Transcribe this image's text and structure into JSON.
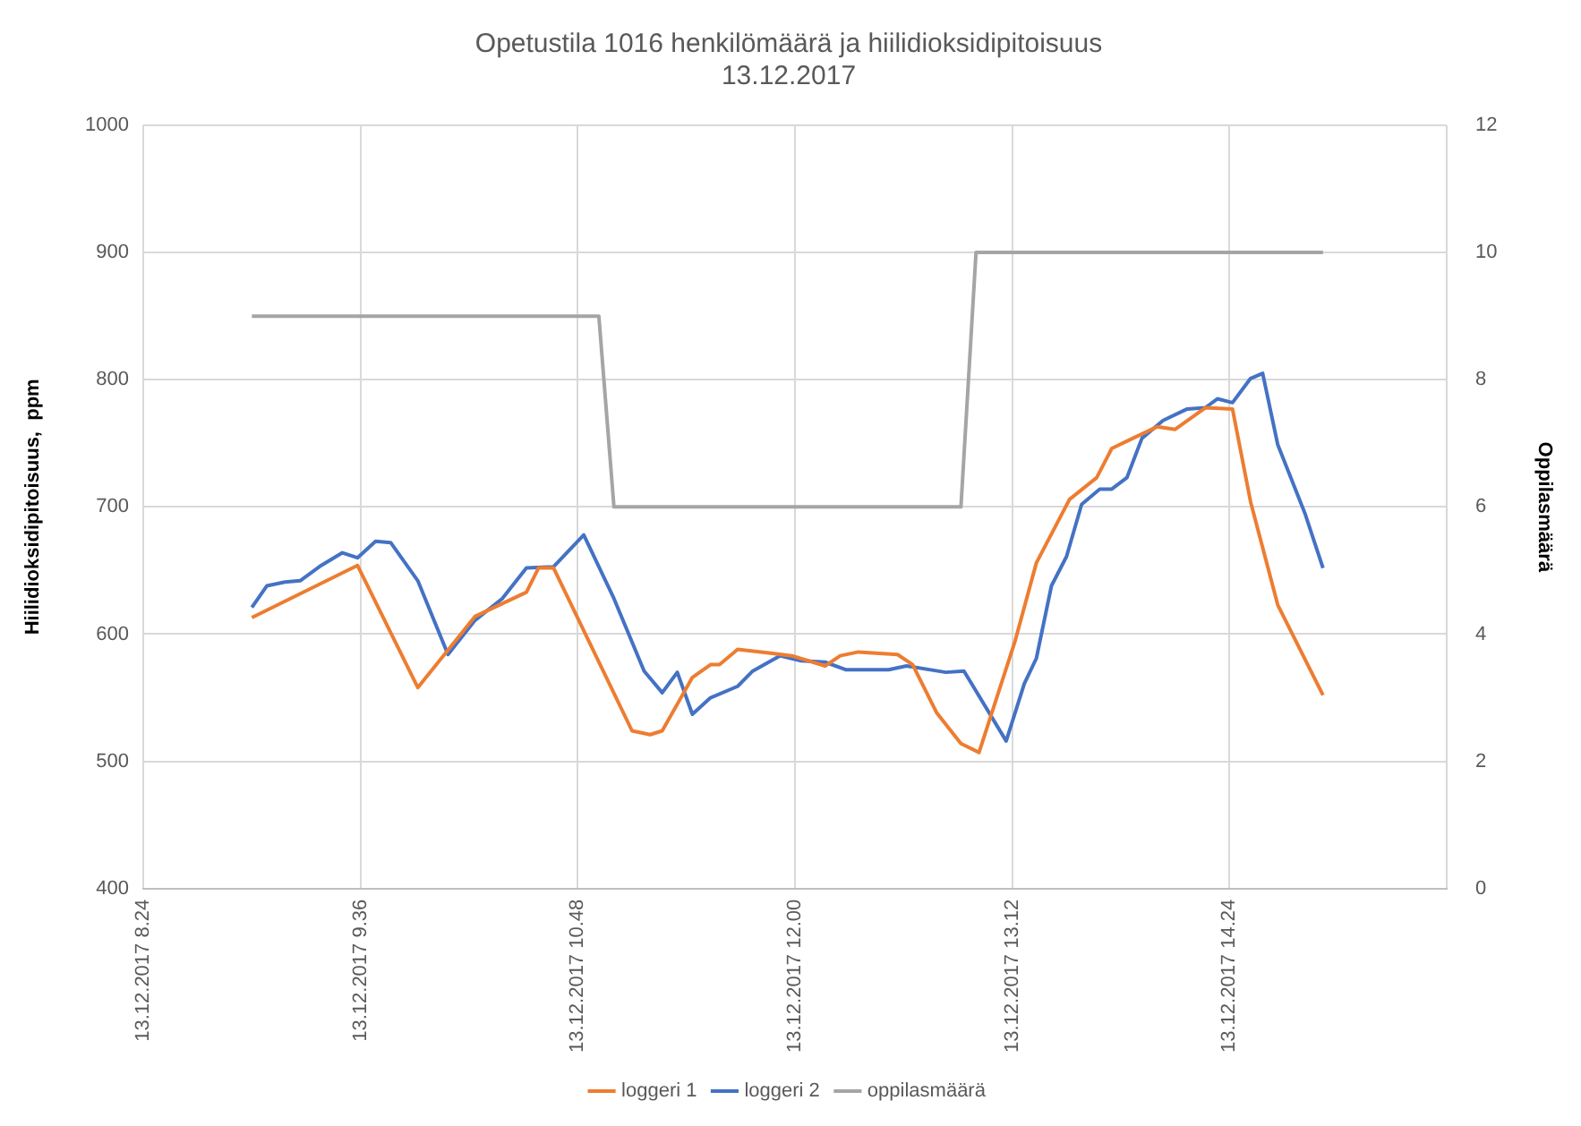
{
  "chart_data": {
    "type": "line",
    "title": "Opetustila 1016 henkilömäärä ja hiilidioksidipitoisuus",
    "subtitle": "13.12.2017",
    "ylabel": "Hiilidioksidipitoisuus,  ppm",
    "y2label": "Oppilasmäärä",
    "xlim": [
      "2017-12-13T08:24",
      "2017-12-13T15:36"
    ],
    "xticks": [
      {
        "value": "2017-12-13T08:24",
        "label": "13.12.2017 8.24"
      },
      {
        "value": "2017-12-13T09:36",
        "label": "13.12.2017 9.36"
      },
      {
        "value": "2017-12-13T10:48",
        "label": "13.12.2017 10.48"
      },
      {
        "value": "2017-12-13T12:00",
        "label": "13.12.2017 12.00"
      },
      {
        "value": "2017-12-13T13:12",
        "label": "13.12.2017 13.12"
      },
      {
        "value": "2017-12-13T14:24",
        "label": "13.12.2017 14.24"
      },
      {
        "value": "2017-12-13T15:36",
        "label": null
      }
    ],
    "ylim": [
      400,
      1000
    ],
    "yticks": [
      400,
      500,
      600,
      700,
      800,
      900,
      1000
    ],
    "y2lim": [
      0,
      12
    ],
    "y2ticks": [
      0,
      2,
      4,
      6,
      8,
      10,
      12
    ],
    "grid": true,
    "legend": "bottom",
    "marker": "none",
    "line_style": "solid",
    "series": [
      {
        "name": "loggeri 1",
        "color": "#ed7d31",
        "x": [
          "2017-12-13T09:00",
          "2017-12-13T09:35",
          "2017-12-13T09:55",
          "2017-12-13T10:14",
          "2017-12-13T10:31",
          "2017-12-13T10:35",
          "2017-12-13T10:40",
          "2017-12-13T11:06",
          "2017-12-13T11:12",
          "2017-12-13T11:16",
          "2017-12-13T11:26",
          "2017-12-13T11:32",
          "2017-12-13T11:35",
          "2017-12-13T11:41",
          "2017-12-13T11:52",
          "2017-12-13T11:59",
          "2017-12-13T12:10",
          "2017-12-13T12:15",
          "2017-12-13T12:21",
          "2017-12-13T12:34",
          "2017-12-13T12:39",
          "2017-12-13T12:47",
          "2017-12-13T12:55",
          "2017-12-13T13:01",
          "2017-12-13T13:13",
          "2017-12-13T13:20",
          "2017-12-13T13:31",
          "2017-12-13T13:40",
          "2017-12-13T13:45",
          "2017-12-13T13:52",
          "2017-12-13T14:00",
          "2017-12-13T14:06",
          "2017-12-13T14:16",
          "2017-12-13T14:25",
          "2017-12-13T14:31",
          "2017-12-13T14:40",
          "2017-12-13T14:55"
        ],
        "values": [
          613,
          654,
          558,
          614,
          633,
          652,
          652,
          524,
          521,
          524,
          566,
          576,
          576,
          588,
          585,
          583,
          575,
          583,
          586,
          584,
          576,
          538,
          514,
          507,
          595,
          656,
          706,
          723,
          746,
          754,
          763,
          761,
          778,
          777,
          704,
          623,
          552
        ]
      },
      {
        "name": "loggeri 2",
        "color": "#4472c4",
        "x": [
          "2017-12-13T09:00",
          "2017-12-13T09:05",
          "2017-12-13T09:11",
          "2017-12-13T09:16",
          "2017-12-13T09:23",
          "2017-12-13T09:30",
          "2017-12-13T09:35",
          "2017-12-13T09:41",
          "2017-12-13T09:46",
          "2017-12-13T09:55",
          "2017-12-13T10:05",
          "2017-12-13T10:14",
          "2017-12-13T10:23",
          "2017-12-13T10:31",
          "2017-12-13T10:40",
          "2017-12-13T10:50",
          "2017-12-13T11:00",
          "2017-12-13T11:10",
          "2017-12-13T11:16",
          "2017-12-13T11:21",
          "2017-12-13T11:26",
          "2017-12-13T11:32",
          "2017-12-13T11:41",
          "2017-12-13T11:46",
          "2017-12-13T11:55",
          "2017-12-13T12:02",
          "2017-12-13T12:10",
          "2017-12-13T12:17",
          "2017-12-13T12:31",
          "2017-12-13T12:37",
          "2017-12-13T12:50",
          "2017-12-13T12:56",
          "2017-12-13T13:10",
          "2017-12-13T13:16",
          "2017-12-13T13:20",
          "2017-12-13T13:25",
          "2017-12-13T13:30",
          "2017-12-13T13:35",
          "2017-12-13T13:41",
          "2017-12-13T13:45",
          "2017-12-13T13:50",
          "2017-12-13T13:55",
          "2017-12-13T14:02",
          "2017-12-13T14:10",
          "2017-12-13T14:16",
          "2017-12-13T14:20",
          "2017-12-13T14:25",
          "2017-12-13T14:31",
          "2017-12-13T14:35",
          "2017-12-13T14:40",
          "2017-12-13T14:49",
          "2017-12-13T14:55"
        ],
        "values": [
          621,
          638,
          641,
          642,
          654,
          664,
          660,
          673,
          672,
          642,
          584,
          611,
          628,
          652,
          653,
          678,
          628,
          571,
          554,
          570,
          537,
          550,
          559,
          571,
          583,
          579,
          578,
          572,
          572,
          575,
          570,
          571,
          516,
          561,
          581,
          638,
          661,
          702,
          714,
          714,
          723,
          754,
          768,
          777,
          778,
          785,
          782,
          801,
          805,
          749,
          695,
          652
        ]
      },
      {
        "name": "oppilasmäärä",
        "color": "#a5a5a5",
        "axis": "y2",
        "x": [
          "2017-12-13T09:00",
          "2017-12-13T10:55",
          "2017-12-13T11:00",
          "2017-12-13T12:55",
          "2017-12-13T13:00",
          "2017-12-13T14:55"
        ],
        "values": [
          9,
          9,
          6,
          6,
          10,
          10
        ]
      }
    ]
  }
}
